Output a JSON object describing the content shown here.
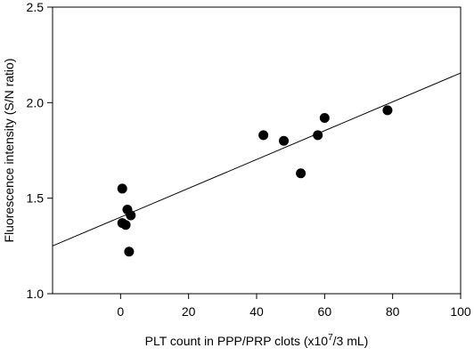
{
  "chart_data": {
    "type": "scatter",
    "xlabel": "PLT count in PPP/PRP clots (x10",
    "xlabel_sup": "7",
    "xlabel_suffix": "/3 mL)",
    "ylabel": "Fluorescence intensity (S/N ratio)",
    "xlim": [
      -20,
      100
    ],
    "ylim": [
      1.0,
      2.5
    ],
    "xticks": [
      0,
      20,
      40,
      60,
      80,
      100
    ],
    "xtick_labels": [
      "0",
      "20",
      "40",
      "60",
      "80",
      "100"
    ],
    "yticks": [
      1.0,
      1.5,
      2.0,
      2.5
    ],
    "ytick_labels": [
      "1.0",
      "1.5",
      "2.0",
      "2.5"
    ],
    "grid": false,
    "points": [
      {
        "x": 0.5,
        "y": 1.55
      },
      {
        "x": 0.5,
        "y": 1.37
      },
      {
        "x": 1.5,
        "y": 1.36
      },
      {
        "x": 2.0,
        "y": 1.44
      },
      {
        "x": 3.0,
        "y": 1.41
      },
      {
        "x": 2.5,
        "y": 1.22
      },
      {
        "x": 42,
        "y": 1.83
      },
      {
        "x": 48,
        "y": 1.8
      },
      {
        "x": 53,
        "y": 1.63
      },
      {
        "x": 58,
        "y": 1.83
      },
      {
        "x": 60,
        "y": 1.92
      },
      {
        "x": 78.5,
        "y": 1.96
      }
    ],
    "regression_line": {
      "x": [
        -20,
        100
      ],
      "y": [
        1.25,
        2.155
      ]
    },
    "marker_color": "#000000",
    "line_color": "#000000"
  }
}
